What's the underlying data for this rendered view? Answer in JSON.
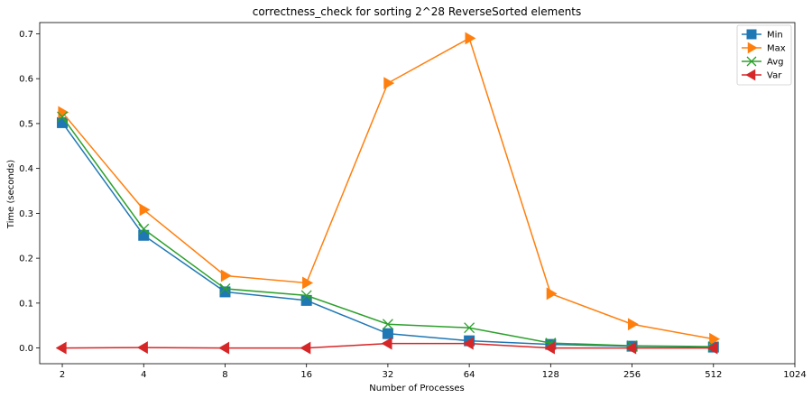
{
  "chart_data": {
    "type": "line",
    "title": "correctness_check for sorting 2^28 ReverseSorted elements",
    "xlabel": "Number of Processes",
    "ylabel": "Time (seconds)",
    "x": [
      2,
      4,
      8,
      16,
      32,
      64,
      128,
      256,
      512
    ],
    "x_ticks": [
      2,
      4,
      8,
      16,
      32,
      64,
      128,
      256,
      512,
      1024
    ],
    "x_scale": "log2",
    "xlim": [
      1.65,
      1024
    ],
    "y_ticks": [
      0.0,
      0.1,
      0.2,
      0.3,
      0.4,
      0.5,
      0.6,
      0.7
    ],
    "y_tick_labels": [
      "0.0",
      "0.1",
      "0.2",
      "0.3",
      "0.4",
      "0.5",
      "0.6",
      "0.7"
    ],
    "ylim": [
      -0.035,
      0.725
    ],
    "grid": false,
    "legend_position": "top-right",
    "series": [
      {
        "name": "Min",
        "color": "#1f77b4",
        "marker": "square",
        "values": [
          0.502,
          0.251,
          0.125,
          0.106,
          0.032,
          0.016,
          0.008,
          0.004,
          0.002
        ]
      },
      {
        "name": "Max",
        "color": "#ff7f0e",
        "marker": "triangle-right",
        "values": [
          0.525,
          0.308,
          0.161,
          0.145,
          0.59,
          0.69,
          0.121,
          0.053,
          0.02
        ]
      },
      {
        "name": "Avg",
        "color": "#2ca02c",
        "marker": "x",
        "values": [
          0.515,
          0.265,
          0.132,
          0.117,
          0.053,
          0.045,
          0.011,
          0.005,
          0.003
        ]
      },
      {
        "name": "Var",
        "color": "#d62728",
        "marker": "triangle-left",
        "values": [
          0.0,
          0.001,
          0.0,
          0.0,
          0.01,
          0.01,
          0.0,
          0.0,
          0.0
        ]
      }
    ]
  }
}
